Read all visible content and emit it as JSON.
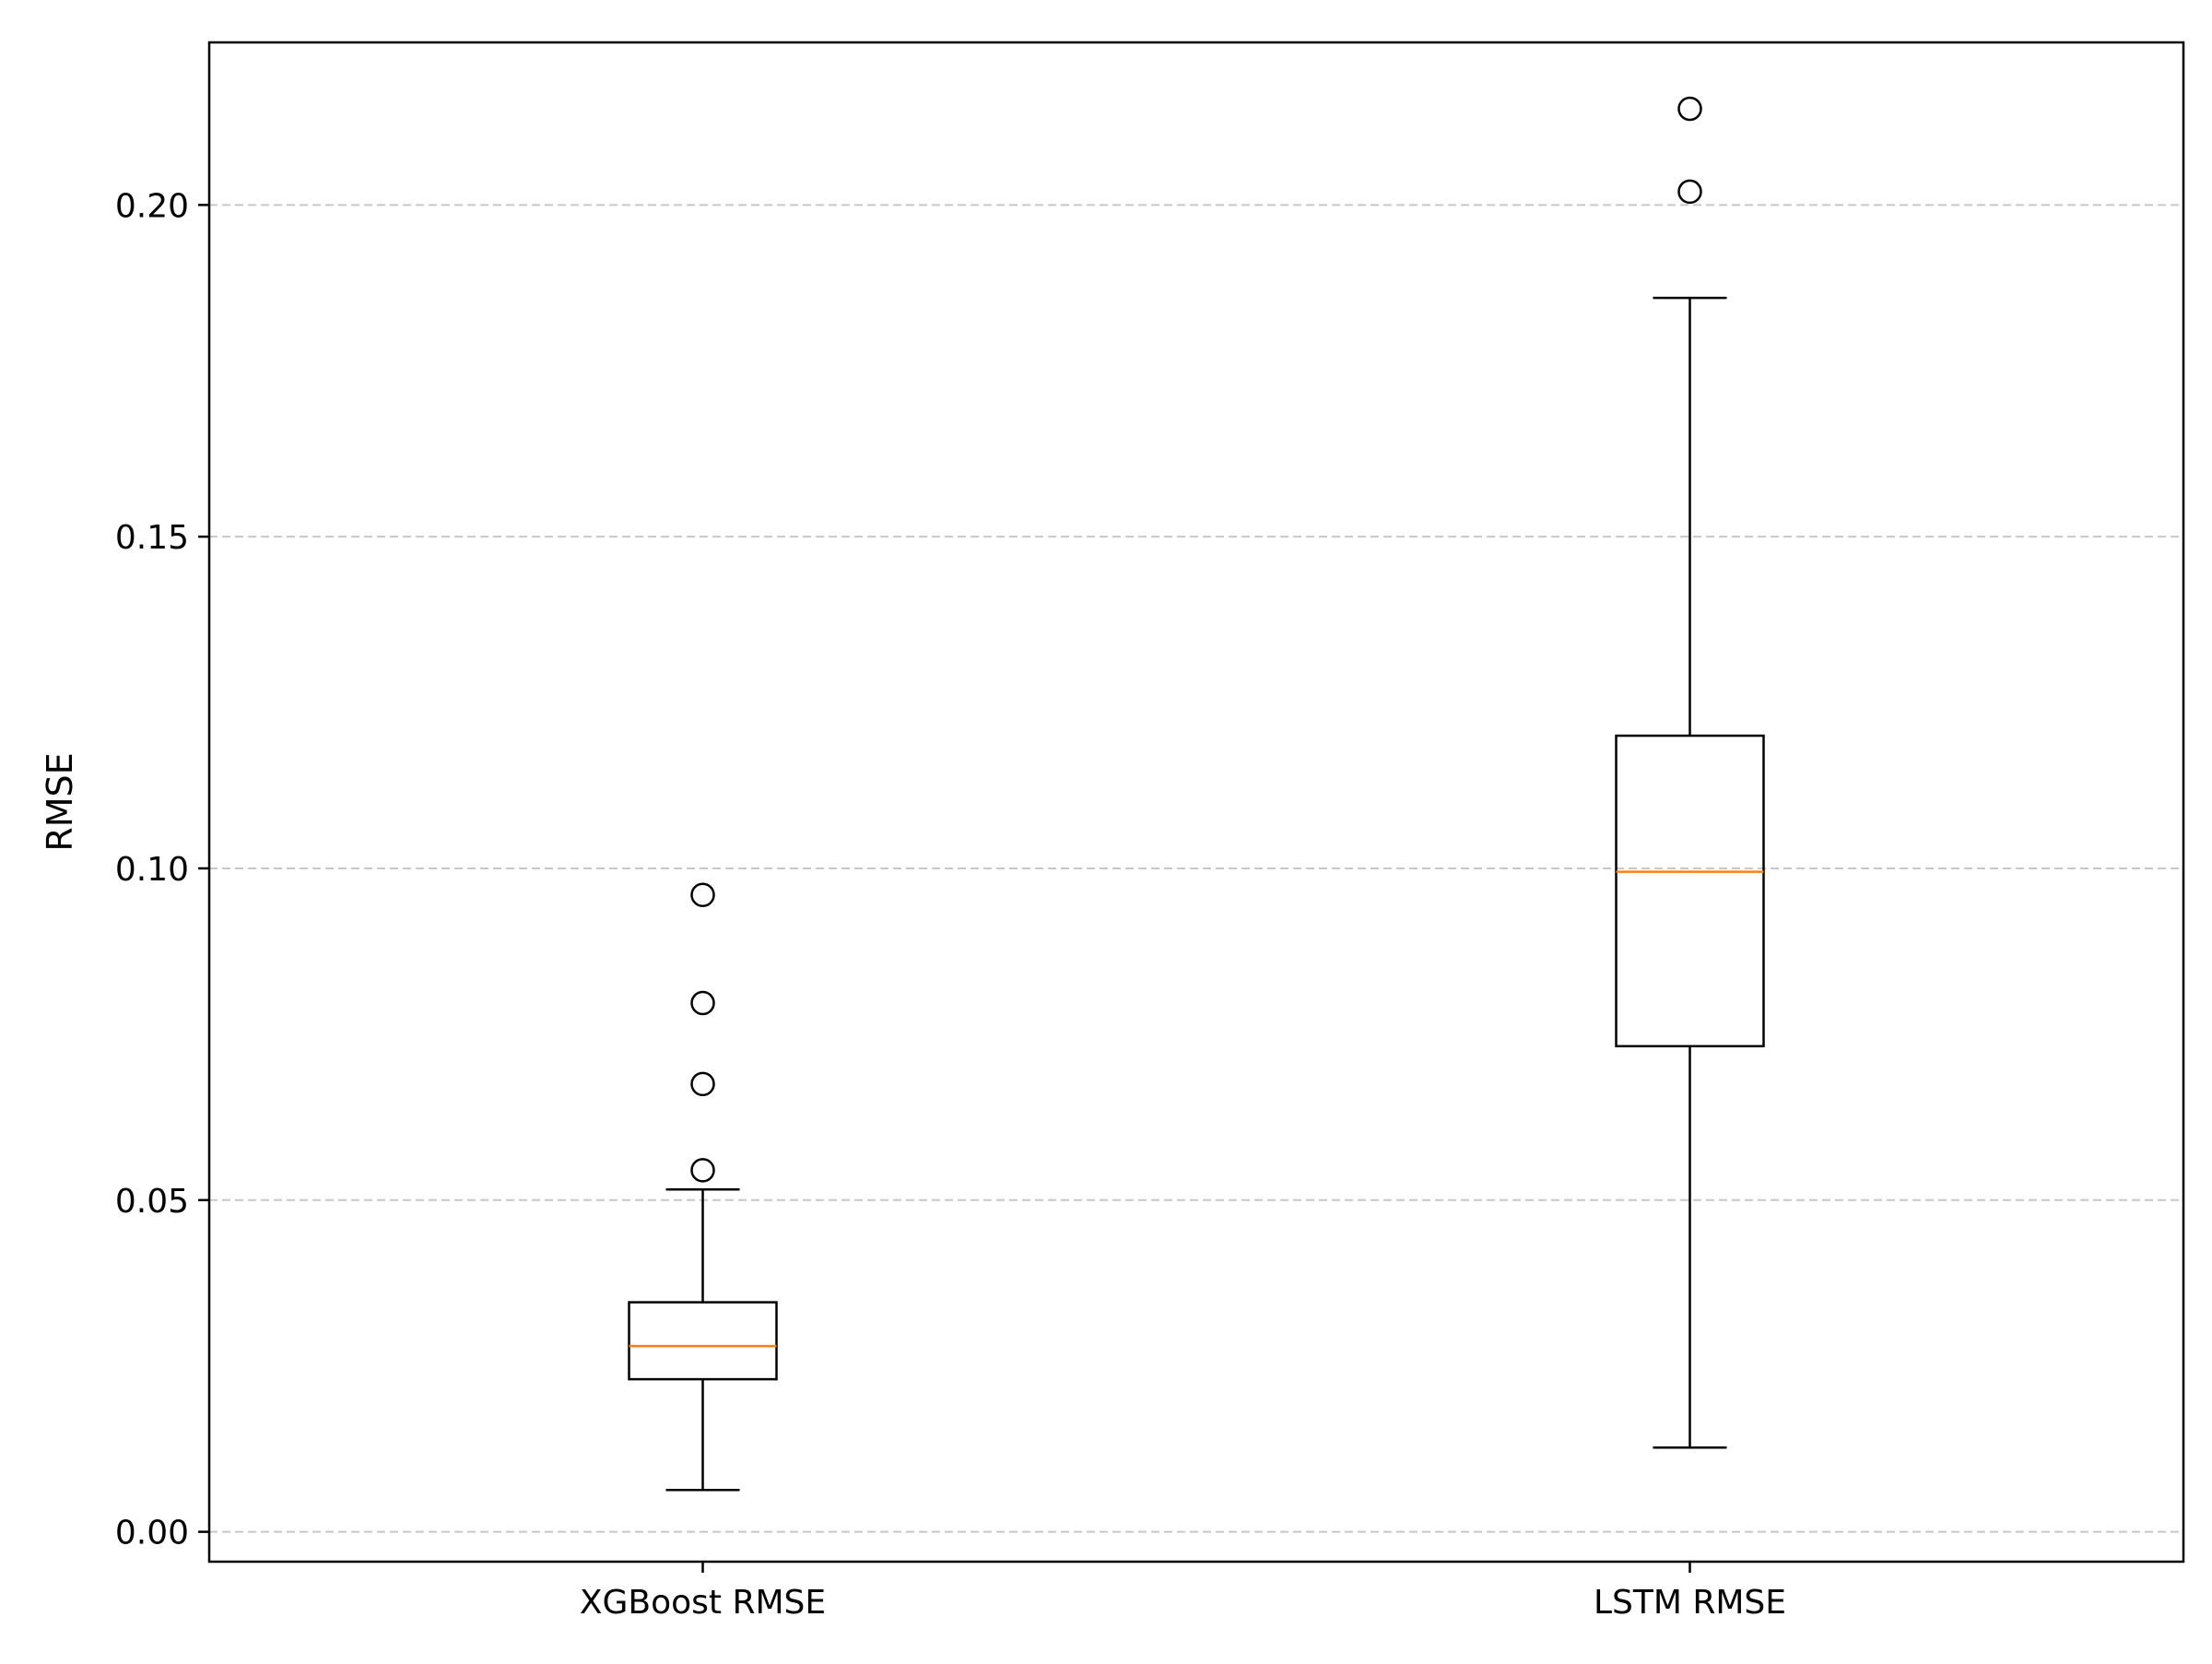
{
  "chart_data": {
    "type": "box",
    "title": "",
    "xlabel": "",
    "ylabel": "RMSE",
    "ylim": [
      -0.0045,
      0.2245
    ],
    "yticks": [
      0.0,
      0.05,
      0.1,
      0.15,
      0.2
    ],
    "ytick_labels": [
      "0.00",
      "0.05",
      "0.10",
      "0.15",
      "0.20"
    ],
    "grid": {
      "axis": "y",
      "style": "dashed",
      "color": "#c8c8c8"
    },
    "median_color": "#ff7f0e",
    "box_color": "#000000",
    "categories": [
      "XGBoost RMSE",
      "LSTM RMSE"
    ],
    "boxes": [
      {
        "label": "XGBoost RMSE",
        "whisker_low": 0.0063,
        "q1": 0.023,
        "median": 0.028,
        "q3": 0.0346,
        "whisker_high": 0.0516,
        "outliers": [
          0.0545,
          0.0675,
          0.0797,
          0.096
        ]
      },
      {
        "label": "LSTM RMSE",
        "whisker_low": 0.0127,
        "q1": 0.0732,
        "median": 0.0995,
        "q3": 0.12,
        "whisker_high": 0.186,
        "outliers": [
          0.202,
          0.2145
        ]
      }
    ]
  }
}
